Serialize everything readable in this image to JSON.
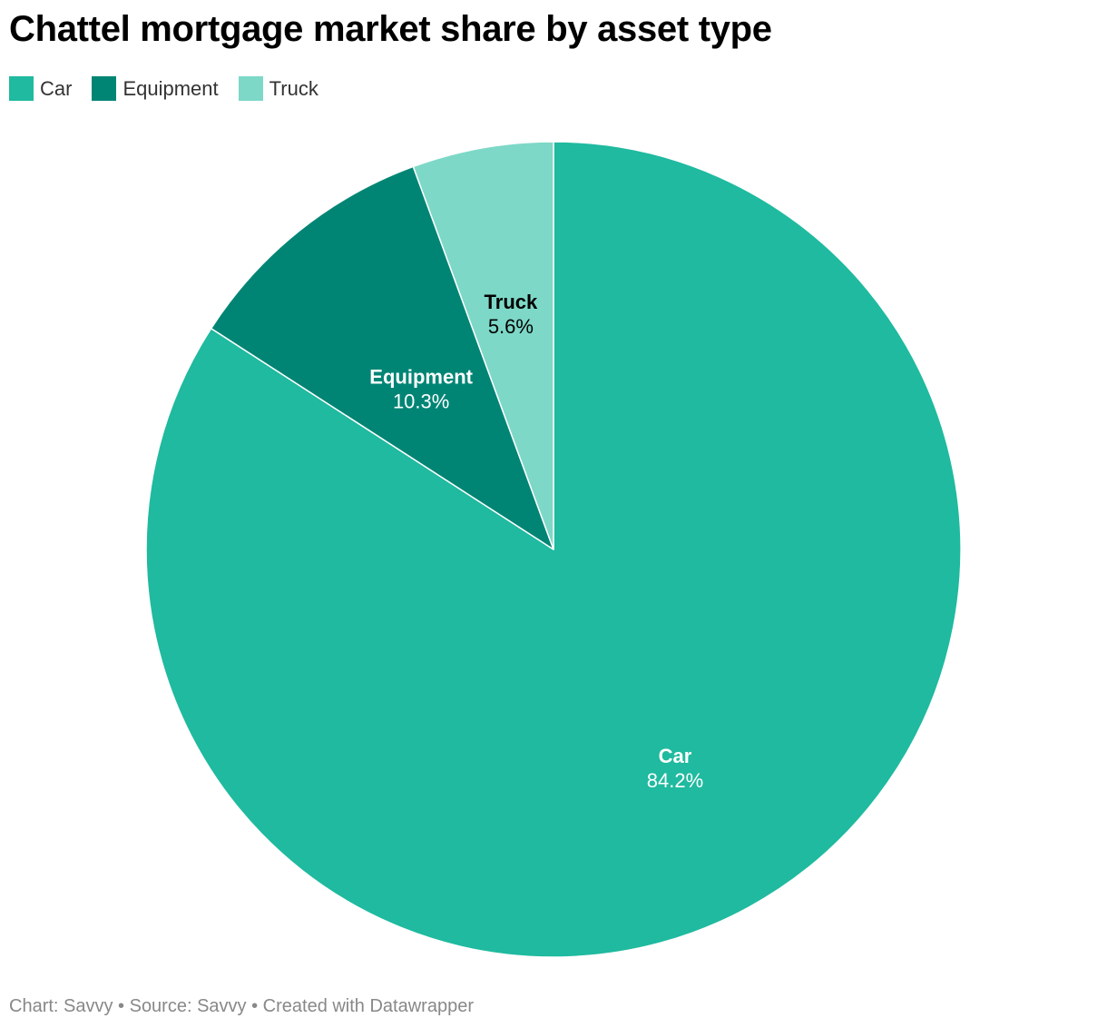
{
  "title": "Chattel mortgage market share by asset type",
  "footer": {
    "text": "Chart: Savvy • Source: Savvy • Created with Datawrapper"
  },
  "chart_data": {
    "type": "pie",
    "title": "Chattel mortgage market share by asset type",
    "legend_position": "top-left",
    "slices": [
      {
        "label": "Car",
        "value": 84.2,
        "display": "84.2%",
        "color": "#1fba9f",
        "label_color": "#ffffff"
      },
      {
        "label": "Equipment",
        "value": 10.3,
        "display": "10.3%",
        "color": "#008575",
        "label_color": "#ffffff"
      },
      {
        "label": "Truck",
        "value": 5.6,
        "display": "5.6%",
        "color": "#7dd8c7",
        "label_color": "#000000"
      }
    ]
  }
}
